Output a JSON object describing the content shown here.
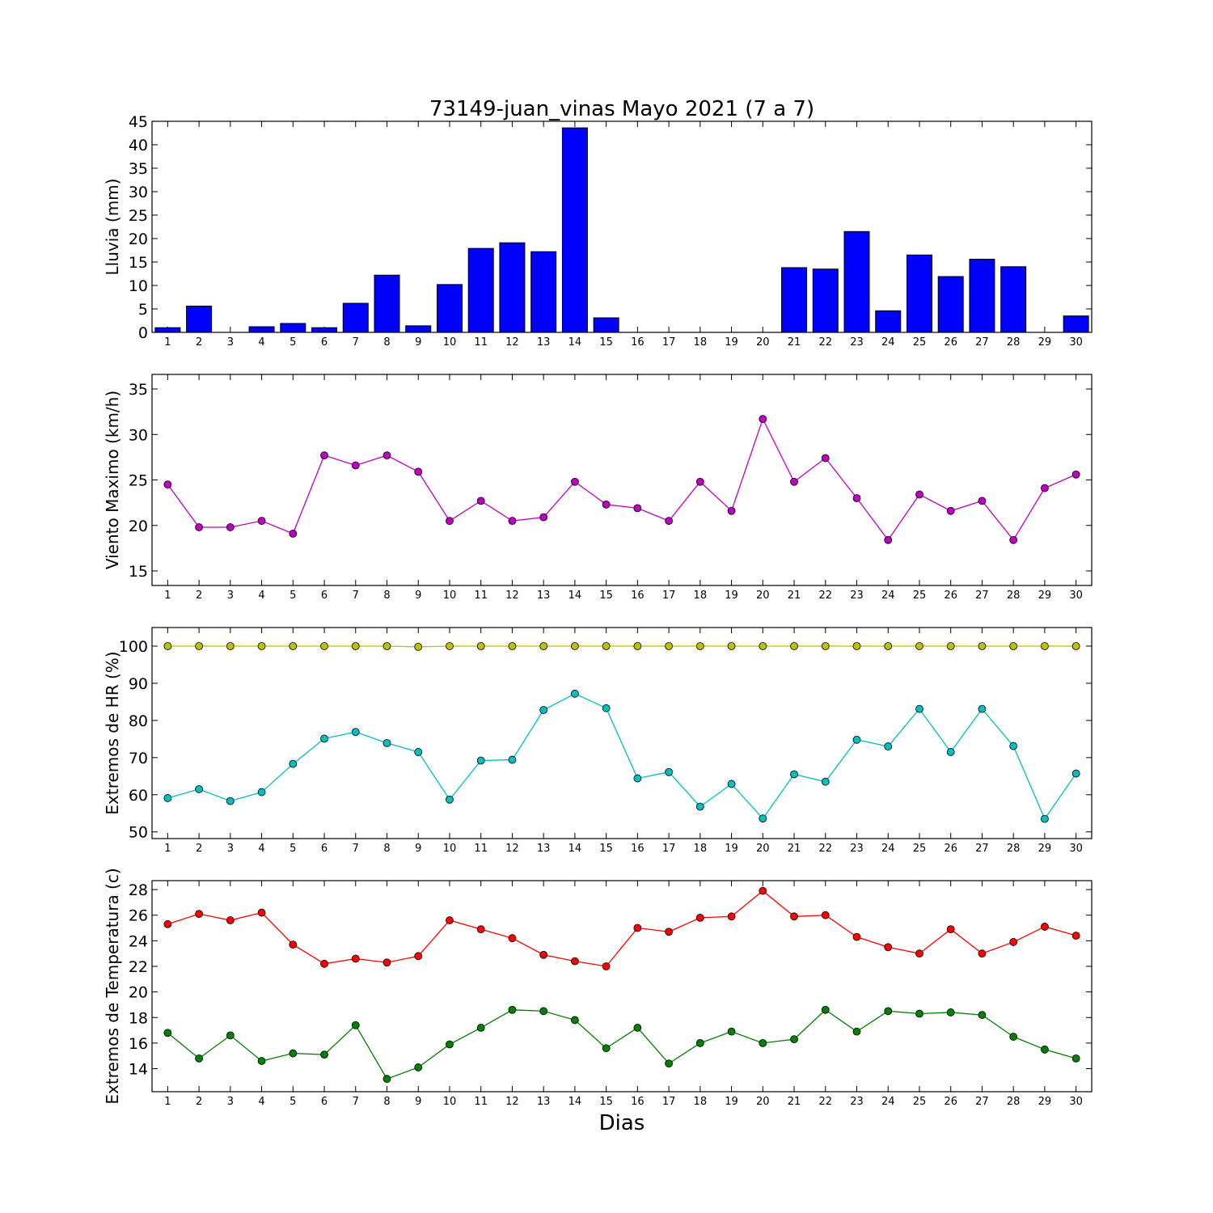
{
  "chart_data": [
    {
      "type": "bar",
      "title": "73149-juan_vinas Mayo 2021  (7 a 7)",
      "ylabel": "Lluvia (mm)",
      "xlabel": "",
      "ylim": [
        0,
        45
      ],
      "yticks": [
        0,
        5,
        10,
        15,
        20,
        25,
        30,
        35,
        40,
        45
      ],
      "color": "#0000ff",
      "categories": [
        "1",
        "2",
        "3",
        "4",
        "5",
        "6",
        "7",
        "8",
        "9",
        "10",
        "11",
        "12",
        "13",
        "14",
        "15",
        "16",
        "17",
        "18",
        "19",
        "20",
        "21",
        "22",
        "23",
        "24",
        "25",
        "26",
        "27",
        "28",
        "29",
        "30"
      ],
      "values": [
        1.0,
        5.6,
        0.0,
        1.2,
        1.9,
        1.0,
        6.2,
        12.2,
        1.4,
        10.2,
        17.9,
        19.1,
        17.2,
        43.6,
        3.1,
        0.0,
        0.0,
        0.0,
        0.0,
        0.0,
        13.8,
        13.5,
        21.5,
        4.6,
        16.5,
        11.9,
        15.6,
        14.0,
        0.0,
        3.5
      ]
    },
    {
      "type": "line",
      "ylabel": "Viento Maximo (km/h)",
      "xlabel": "",
      "ylim": [
        13.4,
        36.6
      ],
      "yticks": [
        15,
        20,
        25,
        30,
        35
      ],
      "x": [
        1,
        2,
        3,
        4,
        5,
        6,
        7,
        8,
        9,
        10,
        11,
        12,
        13,
        14,
        15,
        16,
        17,
        18,
        19,
        20,
        21,
        22,
        23,
        24,
        25,
        26,
        27,
        28,
        29,
        30
      ],
      "series": [
        {
          "color": "#bf00bf",
          "values": [
            24.5,
            19.8,
            19.8,
            20.5,
            19.1,
            27.7,
            26.6,
            27.7,
            25.9,
            20.5,
            22.7,
            20.5,
            20.9,
            24.8,
            22.3,
            21.9,
            20.5,
            24.8,
            21.6,
            31.7,
            24.8,
            27.4,
            23.0,
            18.4,
            23.4,
            21.6,
            22.7,
            18.4,
            24.1,
            25.6
          ]
        }
      ]
    },
    {
      "type": "line",
      "ylabel": "Extremos de HR (%)",
      "xlabel": "",
      "ylim": [
        48.2,
        105
      ],
      "yticks": [
        50,
        60,
        70,
        80,
        90,
        100
      ],
      "x": [
        1,
        2,
        3,
        4,
        5,
        6,
        7,
        8,
        9,
        10,
        11,
        12,
        13,
        14,
        15,
        16,
        17,
        18,
        19,
        20,
        21,
        22,
        23,
        24,
        25,
        26,
        27,
        28,
        29,
        30
      ],
      "series": [
        {
          "color": "#bfbf00",
          "values": [
            100,
            100,
            100,
            100,
            100,
            100,
            100,
            100,
            99.8,
            100,
            100,
            100,
            100,
            100,
            100,
            100,
            100,
            100,
            100,
            100,
            100,
            100,
            100,
            100,
            100,
            100,
            100,
            100,
            100,
            100
          ]
        },
        {
          "color": "#00bfbf",
          "values": [
            59.1,
            61.5,
            58.3,
            60.7,
            68.3,
            75.1,
            76.9,
            73.9,
            71.5,
            58.7,
            69.2,
            69.4,
            82.8,
            87.2,
            83.3,
            64.4,
            66.1,
            56.8,
            62.9,
            53.6,
            65.5,
            63.5,
            74.8,
            73.0,
            83.1,
            71.5,
            83.1,
            73.1,
            53.5,
            65.7
          ]
        }
      ]
    },
    {
      "type": "line",
      "ylabel": "Extremos de Temperatura (c)",
      "xlabel": "Dias",
      "ylim": [
        12.2,
        28.7
      ],
      "yticks": [
        14,
        16,
        18,
        20,
        22,
        24,
        26,
        28
      ],
      "x": [
        1,
        2,
        3,
        4,
        5,
        6,
        7,
        8,
        9,
        10,
        11,
        12,
        13,
        14,
        15,
        16,
        17,
        18,
        19,
        20,
        21,
        22,
        23,
        24,
        25,
        26,
        27,
        28,
        29,
        30
      ],
      "series": [
        {
          "color": "#ff0000",
          "values": [
            25.3,
            26.1,
            25.6,
            26.2,
            23.7,
            22.2,
            22.6,
            22.3,
            22.8,
            25.6,
            24.9,
            24.2,
            22.9,
            22.4,
            22.0,
            25.0,
            24.7,
            25.8,
            25.9,
            27.9,
            25.9,
            26.0,
            24.3,
            23.5,
            23.0,
            24.9,
            23.0,
            23.9,
            25.1,
            24.4
          ]
        },
        {
          "color": "#008000",
          "values": [
            16.8,
            14.8,
            16.6,
            14.6,
            15.2,
            15.1,
            17.4,
            13.2,
            14.1,
            15.9,
            17.2,
            18.6,
            18.5,
            17.8,
            15.6,
            17.2,
            14.4,
            16.0,
            16.9,
            16.0,
            16.3,
            18.6,
            16.9,
            18.5,
            18.3,
            18.4,
            18.2,
            16.5,
            15.5,
            14.8
          ]
        }
      ]
    }
  ]
}
